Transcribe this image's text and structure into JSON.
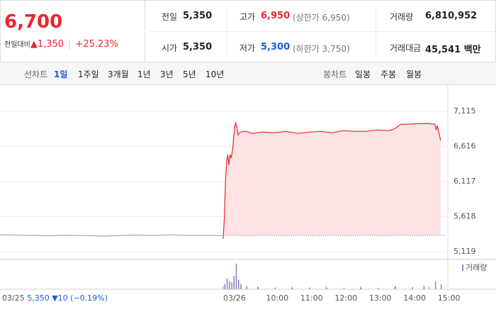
{
  "quote": {
    "price": "6,700",
    "change_label": "전일대비",
    "change": "1,350",
    "change_pct": "+25.23%",
    "stats": [
      [
        {
          "label": "전일",
          "value": "5,350"
        },
        {
          "label": "고가",
          "value": "6,950",
          "note": "(상한가 6,950)"
        },
        {
          "label": "거래량",
          "value": "6,810,952"
        }
      ],
      [
        {
          "label": "시가",
          "value": "5,350"
        },
        {
          "label": "저가",
          "value": "5,300",
          "note": "(하한가 3,750)"
        },
        {
          "label": "거래대금",
          "value": "45,541 백만"
        }
      ]
    ]
  },
  "tabs": {
    "line_label": "선차트",
    "line_items": [
      "1일",
      "1주일",
      "3개월",
      "1년",
      "3년",
      "5년",
      "10년"
    ],
    "candle_label": "봉차트",
    "candle_items": [
      "일봉",
      "주봉",
      "월봉"
    ]
  },
  "prev_day": {
    "date": "03/25",
    "close": "5,350",
    "change": "▼10",
    "change_pct": "(−0.19%)"
  },
  "chart_data": [
    {
      "type": "line",
      "xlim": [
        0,
        780
      ],
      "ylim": [
        5018,
        7488
      ],
      "yticks": [
        {
          "value": 7115,
          "label": "7,115"
        },
        {
          "value": 6616,
          "label": "6,616"
        },
        {
          "value": 6117,
          "label": "6,117"
        },
        {
          "value": 5618,
          "label": "5,618"
        },
        {
          "value": 5119,
          "label": "5,119"
        }
      ],
      "xticks": [
        {
          "value": 390,
          "label": "03/26"
        },
        {
          "value": 450,
          "label": "10:00"
        },
        {
          "value": 510,
          "label": "11:00"
        },
        {
          "value": 570,
          "label": "12:00"
        },
        {
          "value": 630,
          "label": "13:00"
        },
        {
          "value": 690,
          "label": "14:00"
        },
        {
          "value": 750,
          "label": "15:00"
        }
      ],
      "grid": true,
      "baseline": 5350,
      "series": [
        {
          "color": "#aaaaaa",
          "x": [
            0,
            30,
            60,
            90,
            120,
            150,
            180,
            210,
            240,
            270,
            300,
            330,
            360,
            388
          ],
          "values": [
            5360,
            5355,
            5350,
            5345,
            5352,
            5348,
            5340,
            5350,
            5355,
            5350,
            5358,
            5352,
            5350,
            5348
          ]
        },
        {
          "color": "#e8262b",
          "fill": "#fde3e3",
          "x": [
            390,
            392,
            394,
            396,
            398,
            400,
            402,
            404,
            406,
            408,
            410,
            412,
            414,
            416,
            420,
            430,
            440,
            460,
            480,
            500,
            520,
            540,
            560,
            580,
            600,
            620,
            640,
            660,
            680,
            690,
            700,
            710,
            730,
            750,
            760,
            762,
            764,
            770
          ],
          "values": [
            5300,
            5600,
            6100,
            6400,
            6500,
            6350,
            6500,
            6450,
            6550,
            6700,
            6900,
            6950,
            6880,
            6780,
            6820,
            6830,
            6800,
            6820,
            6810,
            6830,
            6800,
            6820,
            6830,
            6810,
            6840,
            6830,
            6830,
            6850,
            6840,
            6870,
            6930,
            6930,
            6940,
            6940,
            6930,
            6850,
            6910,
            6700
          ]
        }
      ]
    },
    {
      "type": "bar",
      "xlim": [
        0,
        780
      ],
      "ylim": [
        0,
        100
      ],
      "series": [
        {
          "name": "거래량",
          "color": "#8e7cc3",
          "x": [
            392,
            396,
            400,
            404,
            408,
            412,
            416,
            420,
            430,
            450,
            480,
            510,
            540,
            570,
            600,
            630,
            660,
            690,
            720,
            740,
            760,
            770
          ],
          "values": [
            20,
            40,
            30,
            25,
            50,
            95,
            35,
            20,
            12,
            8,
            6,
            5,
            6,
            5,
            4,
            6,
            5,
            10,
            8,
            12,
            30,
            18
          ]
        }
      ]
    }
  ]
}
